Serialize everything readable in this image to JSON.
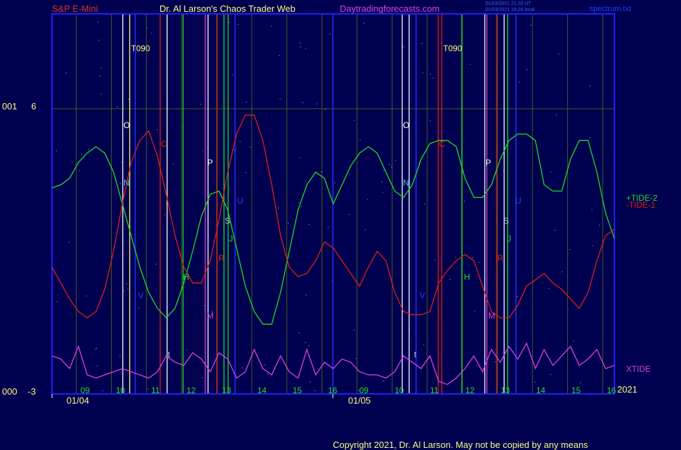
{
  "header": {
    "symbol": "S&P E-Mini",
    "site": "Dr. Al Larson's Chaos Trader Web",
    "url": "Daytradingforecasts.com",
    "stamp1": "01/03/2021 21:20 UT",
    "stamp2": "01/03/2021 16:20 local",
    "file": "spectrum.txt"
  },
  "axis": {
    "y_top_left": "001",
    "y_top_val": "6",
    "y_bot_left": "000",
    "y_bot_val": "-3",
    "date1": "01/04",
    "date2": "01/05",
    "year": "2021",
    "hours1": [
      "09",
      "10",
      "11",
      "12",
      "13",
      "14",
      "15",
      "16"
    ],
    "hours2": [
      "09",
      "10",
      "11",
      "12",
      "13",
      "14",
      "15",
      "16"
    ]
  },
  "legend": {
    "tide2": "+TIDE-2",
    "tide1": "-TIDE-1",
    "xtide": "XTIDE"
  },
  "markers": {
    "t090": "T090",
    "o": "O",
    "n": "N",
    "c": "C",
    "p": "P",
    "u": "U",
    "s": "S",
    "j": "J",
    "r": "R",
    "h": "H",
    "v": "V",
    "m": "M",
    "t": "t"
  },
  "footer": {
    "copyright": "Copyright 2021, Dr. Al Larson. May not be copied by any means"
  },
  "colors": {
    "background": "#000050",
    "frame": "#2020ff",
    "tide2": "#20e020",
    "tide1": "#e02010",
    "xtide": "#e040e0",
    "title_red": "#e03020",
    "title_yellow": "#ffff80",
    "title_magenta": "#e040e0"
  },
  "chart_data": {
    "type": "line",
    "ylim": [
      -3,
      6
    ],
    "series": [
      {
        "name": "+TIDE-2",
        "y": [
          3.5,
          3.6,
          3.8,
          4.3,
          4.6,
          4.8,
          4.6,
          4.0,
          3.0,
          2.0,
          1.0,
          0.2,
          -0.3,
          -0.6,
          -0.3,
          0.5,
          1.5,
          2.6,
          3.3,
          3.4,
          2.8,
          1.6,
          0.4,
          -0.4,
          -0.8,
          -0.8,
          0.2,
          1.5,
          2.8,
          3.6,
          4.0,
          3.8,
          3.0,
          3.6,
          4.2,
          4.6,
          4.8,
          4.6,
          4.0,
          3.4,
          3.2,
          3.6,
          4.4,
          4.9,
          5.0,
          5.0,
          4.8,
          3.8,
          3.2,
          3.2,
          3.6,
          4.4,
          5.0,
          5.2,
          5.2,
          5.0,
          3.6,
          3.4,
          3.4,
          4.4,
          5.0,
          5.0,
          4.0,
          2.7,
          1.9
        ]
      },
      {
        "name": "-TIDE-1",
        "y": [
          1.0,
          0.5,
          0.0,
          -0.4,
          -0.6,
          -0.4,
          0.3,
          1.5,
          3.0,
          4.3,
          5.0,
          5.3,
          4.5,
          3.3,
          2.0,
          1.0,
          0.5,
          0.5,
          1.2,
          2.5,
          4.0,
          5.2,
          5.8,
          5.8,
          5.0,
          3.6,
          2.0,
          1.0,
          0.7,
          0.8,
          1.2,
          1.8,
          1.6,
          1.2,
          0.8,
          0.4,
          1.0,
          1.5,
          1.2,
          0.2,
          -0.4,
          -0.5,
          -0.5,
          -0.4,
          0.5,
          0.9,
          1.2,
          1.4,
          1.2,
          0.4,
          -0.4,
          -0.6,
          -0.6,
          -0.2,
          0.4,
          0.6,
          0.8,
          0.5,
          0.3,
          0.0,
          -0.3,
          0.2,
          1.2,
          2.0,
          2.2
        ]
      },
      {
        "name": "XTIDE",
        "y": [
          -1.8,
          -1.9,
          -2.2,
          -1.5,
          -2.4,
          -2.5,
          -2.4,
          -2.3,
          -2.2,
          -2.3,
          -2.4,
          -2.5,
          -2.3,
          -1.8,
          -2.0,
          -2.1,
          -1.7,
          -1.9,
          -2.3,
          -1.7,
          -1.9,
          -2.5,
          -2.3,
          -1.6,
          -2.2,
          -2.4,
          -1.8,
          -2.3,
          -2.5,
          -1.6,
          -2.4,
          -2.0,
          -2.2,
          -1.9,
          -2.0,
          -2.3,
          -2.4,
          -2.4,
          -2.5,
          -2.3,
          -1.8,
          -2.0,
          -2.2,
          -1.8,
          -2.6,
          -2.7,
          -2.5,
          -2.2,
          -1.8,
          -2.3,
          -1.6,
          -2.0,
          -1.5,
          -1.9,
          -1.4,
          -2.2,
          -1.6,
          -2.1,
          -1.8,
          -1.5,
          -2.1,
          -1.9,
          -1.6,
          -2.2,
          -2.1
        ]
      }
    ]
  }
}
